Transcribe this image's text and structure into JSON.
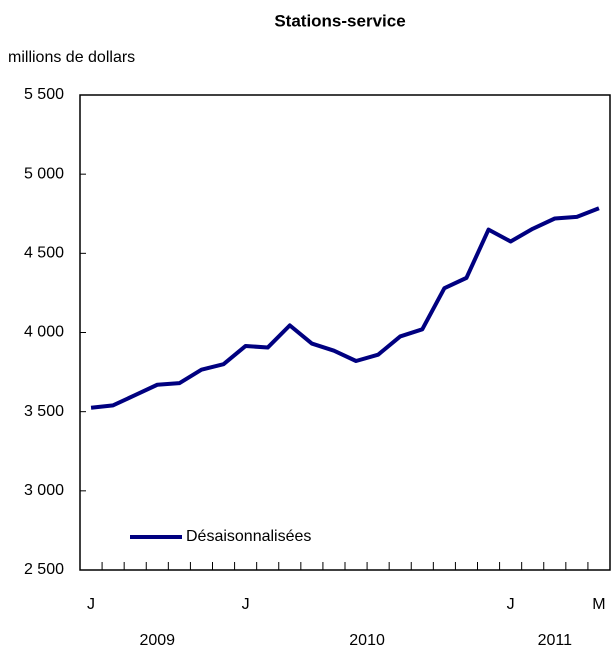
{
  "chart_data": {
    "type": "line",
    "title": "Stations-service",
    "y_axis_label": "millions de dollars",
    "categories": [
      "J",
      null,
      null,
      null,
      null,
      null,
      null,
      "J",
      null,
      null,
      null,
      null,
      null,
      null,
      null,
      null,
      null,
      null,
      null,
      "J",
      null,
      null,
      null,
      "M"
    ],
    "year_groups": [
      {
        "label": "2009",
        "count": 7
      },
      {
        "label": "2010",
        "count": 12
      },
      {
        "label": "2011",
        "count": 5
      }
    ],
    "series": [
      {
        "name": "Désaisonnalisées",
        "color": "#000080",
        "values": [
          3525,
          3540,
          3605,
          3670,
          3680,
          3765,
          3800,
          3915,
          3905,
          4045,
          3930,
          3885,
          3820,
          3860,
          3975,
          4020,
          4280,
          4345,
          4650,
          4575,
          4655,
          4720,
          4730,
          4785
        ]
      }
    ],
    "ylim": [
      2500,
      5500
    ],
    "yticks": [
      {
        "value": 2500,
        "label": "2 500"
      },
      {
        "value": 3000,
        "label": "3 000"
      },
      {
        "value": 3500,
        "label": "3 500"
      },
      {
        "value": 4000,
        "label": "4 000"
      },
      {
        "value": 4500,
        "label": "4 500"
      },
      {
        "value": 5000,
        "label": "5 000"
      },
      {
        "value": 5500,
        "label": "5 500"
      }
    ],
    "grid": false,
    "legend": "lower left"
  }
}
